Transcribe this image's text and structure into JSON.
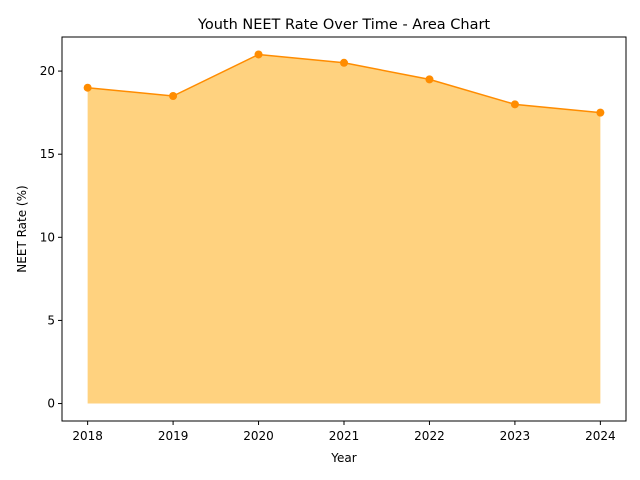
{
  "chart_data": {
    "type": "area",
    "title": "Youth NEET Rate Over Time - Area Chart",
    "xlabel": "Year",
    "ylabel": "NEET Rate (%)",
    "x": [
      2018,
      2019,
      2020,
      2021,
      2022,
      2023,
      2024
    ],
    "x_tick_labels": [
      "2018",
      "2019",
      "2020",
      "2021",
      "2022",
      "2023",
      "2024"
    ],
    "y": [
      19.0,
      18.5,
      21.0,
      20.5,
      19.5,
      18.0,
      17.5
    ],
    "y_ticks": [
      0,
      5,
      10,
      15,
      20
    ],
    "y_tick_labels": [
      "0",
      "5",
      "10",
      "15",
      "20"
    ],
    "xlim": [
      2017.7,
      2024.3
    ],
    "ylim": [
      -1.05,
      22.05
    ],
    "grid": false,
    "legend": "none",
    "colors": {
      "line": "#ff8c00",
      "fill": "#ffa500",
      "fill_opacity": 0.5,
      "marker": "#ff8c00"
    }
  }
}
